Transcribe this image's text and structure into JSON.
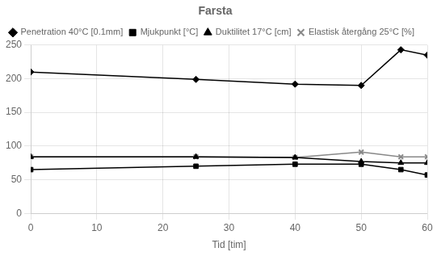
{
  "chart_data": {
    "type": "line",
    "title": "Farsta",
    "xlabel": "Tid [tim]",
    "xlim": [
      0,
      60
    ],
    "ylim": [
      0,
      250
    ],
    "xticks": [
      0,
      10,
      20,
      30,
      40,
      50,
      60
    ],
    "yticks": [
      0,
      50,
      100,
      150,
      200,
      250
    ],
    "grid": true,
    "legend": "upper left",
    "series": [
      {
        "name": "Penetration 40°C [0.1mm]",
        "x": [
          0,
          25,
          40,
          50,
          56,
          60
        ],
        "values": [
          210,
          199,
          192,
          190,
          243,
          235
        ],
        "color": "#000000",
        "marker": "diamond"
      },
      {
        "name": "Mjukpunkt [°C]",
        "x": [
          0,
          25,
          40,
          50,
          56,
          60
        ],
        "values": [
          65,
          70,
          73,
          73,
          65,
          57
        ],
        "color": "#000000",
        "marker": "square"
      },
      {
        "name": "Duktilitet 17°C [cm]",
        "x": [
          0,
          25,
          40,
          50,
          56,
          60
        ],
        "values": [
          84,
          84,
          83,
          77,
          75,
          75
        ],
        "color": "#000000",
        "marker": "triangle"
      },
      {
        "name": "Elastisk återgång 25°C [%]",
        "x": [
          0,
          25,
          40,
          50,
          56,
          60
        ],
        "values": [
          84,
          84,
          83,
          91,
          84,
          84
        ],
        "color": "#888888",
        "marker": "x"
      }
    ]
  }
}
